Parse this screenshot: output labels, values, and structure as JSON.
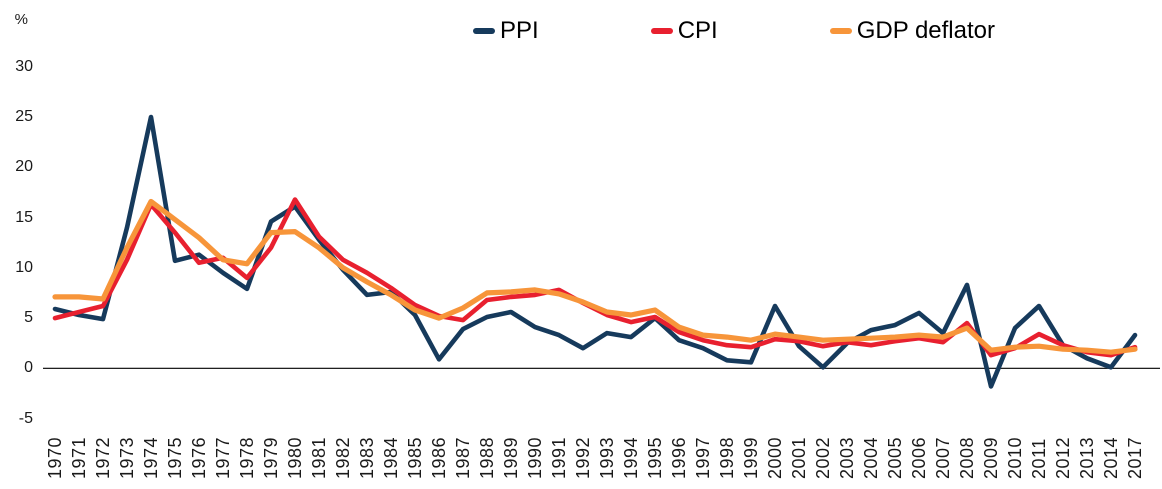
{
  "chart_data": {
    "type": "line",
    "title": "",
    "unit_label": "%",
    "grid": false,
    "legend_position": "top-center",
    "baseline": 0,
    "ylim": [
      -5,
      33
    ],
    "y_ticks": [
      30,
      25,
      20,
      15,
      10,
      5,
      0,
      -5
    ],
    "x_labels": [
      "1970",
      "1971",
      "1972",
      "1973",
      "1974",
      "1975",
      "1976",
      "1977",
      "1978",
      "1979",
      "1980",
      "1981",
      "1982",
      "1983",
      "1984",
      "1985",
      "1986",
      "1987",
      "1988",
      "1989",
      "1990",
      "1991",
      "1992",
      "1993",
      "1994",
      "1995",
      "1996",
      "1997",
      "1998",
      "1999",
      "2000",
      "2001",
      "2002",
      "2003",
      "2004",
      "2005",
      "2006",
      "2007",
      "2008",
      "2009",
      "2010",
      "2011",
      "2012",
      "2013",
      "2014",
      "2017"
    ],
    "series": [
      {
        "name": "PPI",
        "color": "#163a5c",
        "values": [
          5.9,
          5.3,
          4.9,
          14.0,
          25.0,
          10.7,
          11.3,
          9.5,
          7.9,
          14.6,
          16.1,
          12.8,
          9.8,
          7.3,
          7.6,
          5.3,
          0.9,
          3.9,
          5.1,
          5.6,
          4.1,
          3.3,
          2.0,
          3.5,
          3.1,
          5.0,
          2.8,
          2.0,
          0.8,
          0.6,
          6.2,
          2.2,
          0.1,
          2.5,
          3.8,
          4.3,
          5.5,
          3.5,
          8.3,
          -1.8,
          4.0,
          6.2,
          2.3,
          1.0,
          0.1,
          3.3
        ]
      },
      {
        "name": "CPI",
        "color": "#e8202f",
        "values": [
          5.0,
          5.6,
          6.2,
          10.8,
          16.3,
          13.5,
          10.5,
          11.0,
          9.0,
          12.0,
          16.8,
          13.1,
          10.8,
          9.5,
          8.0,
          6.3,
          5.2,
          4.8,
          6.8,
          7.1,
          7.3,
          7.8,
          6.5,
          5.3,
          4.6,
          5.1,
          3.6,
          2.8,
          2.3,
          2.1,
          2.9,
          2.7,
          2.2,
          2.6,
          2.3,
          2.7,
          3.0,
          2.6,
          4.5,
          1.3,
          2.0,
          3.4,
          2.3,
          1.6,
          1.3,
          2.1
        ]
      },
      {
        "name": "GDP deflator",
        "color": "#f7953a",
        "values": [
          7.1,
          7.1,
          6.9,
          12.0,
          16.6,
          14.8,
          13.0,
          10.8,
          10.4,
          13.5,
          13.6,
          12.0,
          10.0,
          8.6,
          7.3,
          5.8,
          5.0,
          6.0,
          7.5,
          7.6,
          7.8,
          7.4,
          6.6,
          5.6,
          5.3,
          5.8,
          4.1,
          3.3,
          3.1,
          2.8,
          3.4,
          3.1,
          2.8,
          2.9,
          3.0,
          3.1,
          3.3,
          3.1,
          4.0,
          1.8,
          2.1,
          2.2,
          1.9,
          1.8,
          1.6,
          1.9
        ]
      }
    ]
  }
}
